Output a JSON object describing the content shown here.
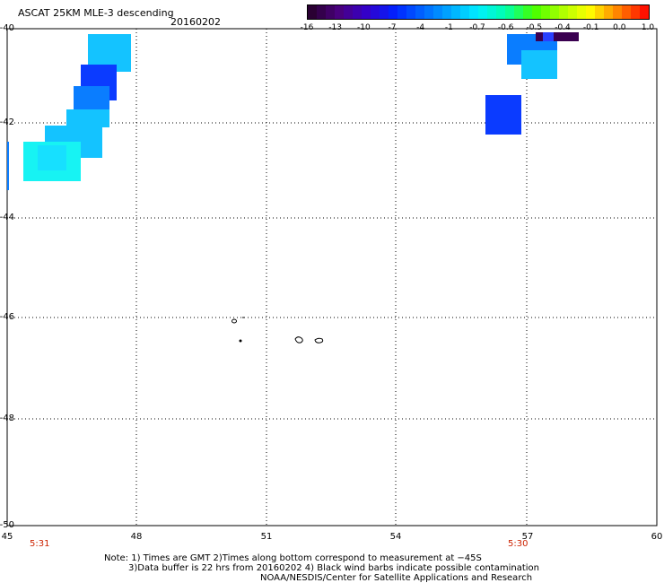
{
  "header": {
    "title": "ASCAT 25KM MLE-3 descending",
    "date": "20160202"
  },
  "colorbar": {
    "labels": [
      "-16",
      "-13",
      "-10",
      "-7",
      "-4",
      "-1",
      "-0.7",
      "-0.6",
      "-0.5",
      "-0.4",
      "-0.1",
      "0.0",
      "1.0"
    ],
    "colors": [
      "#2a0033",
      "#4a0080",
      "#3300cc",
      "#0022ff",
      "#0066ff",
      "#00aaff",
      "#00eeff",
      "#00ffaa",
      "#44ff00",
      "#aaff00",
      "#ffff00",
      "#ff8800",
      "#ff1100"
    ]
  },
  "map": {
    "lat_ticks": [
      "-40",
      "-42",
      "-44",
      "-46",
      "-48",
      "-50"
    ],
    "lon_ticks": [
      "45",
      "48",
      "51",
      "54",
      "57",
      "60"
    ],
    "time_left": "5:31",
    "time_right": "5:30",
    "colors": {
      "cyan": "#17f3f3",
      "light_blue": "#14c3ff",
      "mid_blue": "#0a7dff",
      "deep_blue": "#0b3bff",
      "dark_purple": "#3a0050",
      "border": "#000000",
      "grid": "#000000"
    }
  },
  "footer": {
    "note_line1": "Note: 1) Times are GMT 2)Times along bottom correspond to measurement at −45S",
    "note_line2": "3)Data buffer is 22 hrs from 20160202 4) Black wind barbs indicate possible contamination",
    "credit": "NOAA/NESDIS/Center for Satellite Applications and Research"
  }
}
